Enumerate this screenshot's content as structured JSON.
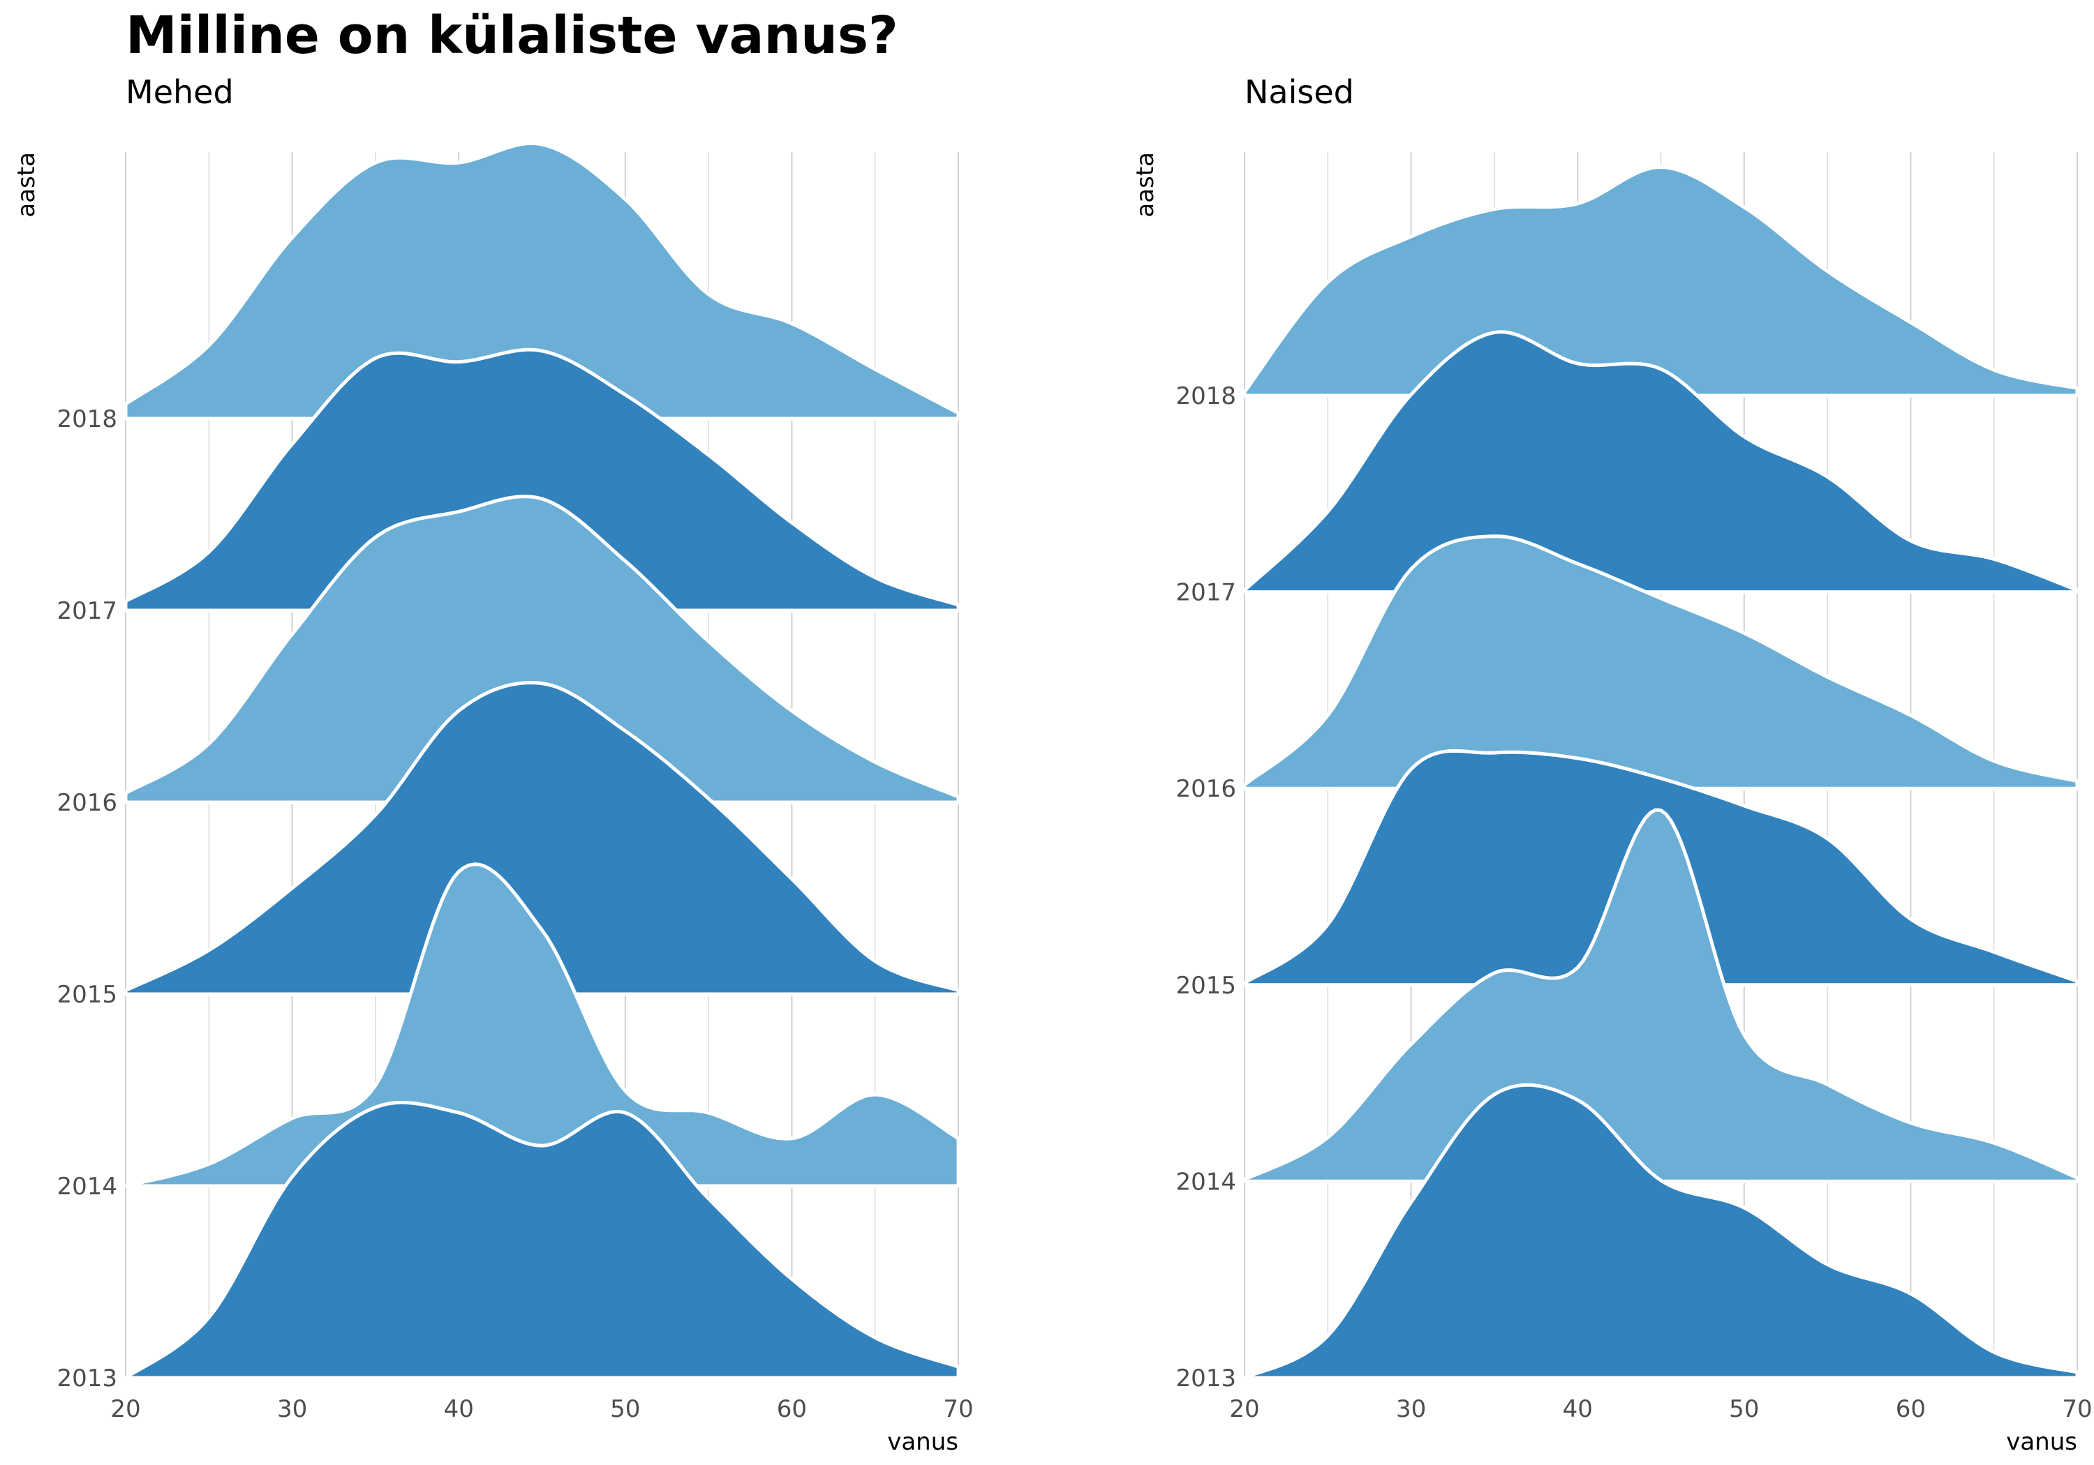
{
  "title": "Milline on külaliste vanus?",
  "colors": {
    "light": "#6baed6",
    "dark": "#3182bd",
    "outline": "#ffffff",
    "grid": "#d0d0d0",
    "axis_text": "#4d4d4d"
  },
  "chart_data": [
    {
      "type": "area",
      "subtitle": "Mehed",
      "xlabel": "vanus",
      "ylabel": "aasta",
      "xlim": [
        20,
        70
      ],
      "x_ticks": [
        20,
        30,
        40,
        50,
        60,
        70
      ],
      "grid": true,
      "x": [
        20,
        25,
        30,
        35,
        40,
        45,
        50,
        55,
        60,
        65,
        70
      ],
      "series": [
        {
          "name": "2013",
          "color": "dark",
          "values": [
            0.0,
            0.33,
            1.1,
            1.48,
            1.45,
            1.27,
            1.45,
            0.98,
            0.54,
            0.22,
            0.06
          ]
        },
        {
          "name": "2014",
          "color": "light",
          "values": [
            0.0,
            0.12,
            0.37,
            0.55,
            1.72,
            1.4,
            0.52,
            0.4,
            0.26,
            0.5,
            0.26
          ]
        },
        {
          "name": "2015",
          "color": "dark",
          "values": [
            0.02,
            0.24,
            0.58,
            0.98,
            1.55,
            1.7,
            1.44,
            1.07,
            0.63,
            0.18,
            0.02
          ]
        },
        {
          "name": "2016",
          "color": "light",
          "values": [
            0.05,
            0.32,
            0.92,
            1.45,
            1.59,
            1.66,
            1.32,
            0.88,
            0.5,
            0.22,
            0.03
          ]
        },
        {
          "name": "2017",
          "color": "dark",
          "values": [
            0.05,
            0.32,
            0.91,
            1.38,
            1.36,
            1.42,
            1.18,
            0.85,
            0.48,
            0.18,
            0.03
          ]
        },
        {
          "name": "2018",
          "color": "light",
          "values": [
            0.08,
            0.4,
            0.99,
            1.4,
            1.4,
            1.5,
            1.2,
            0.68,
            0.52,
            0.27,
            0.03
          ]
        }
      ]
    },
    {
      "type": "area",
      "subtitle": "Naised",
      "xlabel": "vanus",
      "ylabel": "aasta",
      "xlim": [
        20,
        70
      ],
      "x_ticks": [
        20,
        30,
        40,
        50,
        60,
        70
      ],
      "grid": true,
      "x": [
        20,
        25,
        30,
        35,
        40,
        45,
        50,
        55,
        60,
        65,
        70
      ],
      "series": [
        {
          "name": "2013",
          "color": "dark",
          "values": [
            0.0,
            0.23,
            0.96,
            1.55,
            1.52,
            1.08,
            0.93,
            0.62,
            0.46,
            0.14,
            0.03
          ]
        },
        {
          "name": "2014",
          "color": "light",
          "values": [
            0.01,
            0.24,
            0.75,
            1.14,
            1.17,
            2.03,
            0.8,
            0.53,
            0.32,
            0.21,
            0.02
          ]
        },
        {
          "name": "2015",
          "color": "dark",
          "values": [
            0.01,
            0.33,
            1.18,
            1.27,
            1.24,
            1.13,
            0.98,
            0.8,
            0.36,
            0.18,
            0.02
          ]
        },
        {
          "name": "2016",
          "color": "light",
          "values": [
            0.02,
            0.4,
            1.2,
            1.38,
            1.23,
            1.04,
            0.85,
            0.61,
            0.4,
            0.15,
            0.04
          ]
        },
        {
          "name": "2017",
          "color": "dark",
          "values": [
            0.01,
            0.44,
            1.08,
            1.42,
            1.25,
            1.22,
            0.85,
            0.63,
            0.28,
            0.18,
            0.01
          ]
        },
        {
          "name": "2018",
          "color": "light",
          "values": [
            0.02,
            0.62,
            0.87,
            1.02,
            1.05,
            1.25,
            1.03,
            0.68,
            0.4,
            0.14,
            0.04
          ]
        }
      ]
    }
  ]
}
